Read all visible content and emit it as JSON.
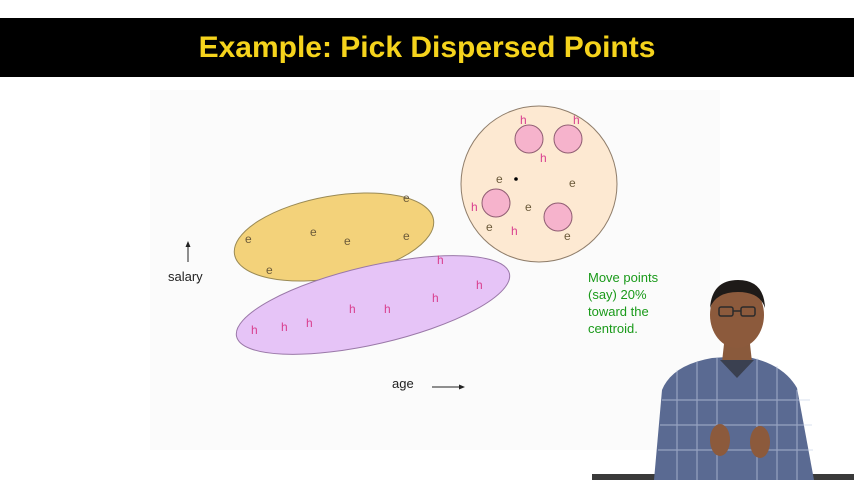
{
  "slide": {
    "title": "Example: Pick Dispersed Points",
    "colors": {
      "title_bar": "#000000",
      "title_text": "#f5d31c",
      "note_text": "#1a9a1a"
    }
  },
  "diagram": {
    "axes": {
      "y_label": "salary",
      "x_label": "age"
    },
    "clusters": [
      {
        "name": "e-cluster",
        "fill": "#f3d27a"
      },
      {
        "name": "h-cluster",
        "fill": "#e6c4f7"
      },
      {
        "name": "circle-cluster",
        "fill": "#fde9d2"
      }
    ],
    "point_labels": {
      "e": "e",
      "h": "h"
    }
  },
  "note": {
    "lines": [
      "Move points",
      "(say) 20%",
      "toward the",
      "centroid."
    ]
  }
}
